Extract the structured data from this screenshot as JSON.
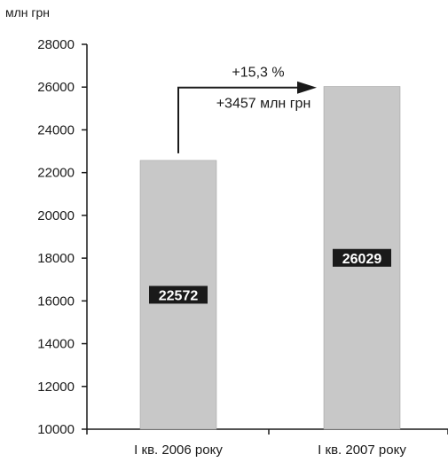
{
  "chart_data": {
    "type": "bar",
    "ylabel": "млн грн",
    "categories": [
      "І кв. 2006 року",
      "І кв. 2007 року"
    ],
    "values": [
      22572,
      26029
    ],
    "data_labels": [
      "22572",
      "26029"
    ],
    "ylim": [
      10000,
      28000
    ],
    "yticks": [
      10000,
      12000,
      14000,
      16000,
      18000,
      20000,
      22000,
      24000,
      26000,
      28000
    ],
    "grid": false,
    "legend": "none",
    "bar_color": "#c8c8c8",
    "label_bg_color": "#1a1a1a",
    "label_text_color": "#ffffff",
    "annotation": {
      "line1": "+15,3 %",
      "line2": "+3457 млн грн"
    }
  }
}
